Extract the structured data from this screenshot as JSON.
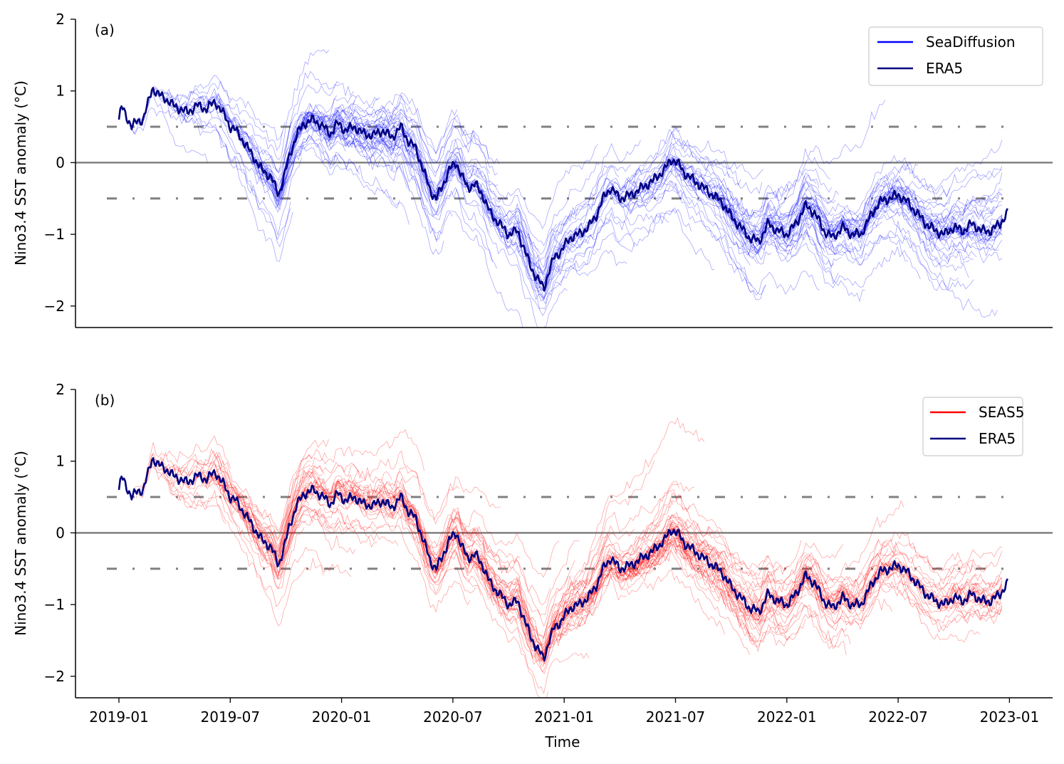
{
  "chart_data": [
    {
      "type": "line",
      "panel_label": "(a)",
      "ylabel": "Nino3.4 SST anomaly (°C)",
      "xlabel": "",
      "ylim": [
        -2.3,
        2.0
      ],
      "yticks": [
        2,
        1,
        0,
        -1,
        -2
      ],
      "ytick_labels": [
        "2",
        "1",
        "0",
        "−1",
        "−2"
      ],
      "reference_lines": {
        "zero": 0,
        "thresholds": [
          0.5,
          -0.5
        ]
      },
      "legend": {
        "position": "top-right",
        "entries": [
          "SeaDiffusion",
          "ERA5"
        ]
      },
      "series": [
        {
          "name": "SeaDiffusion",
          "kind": "ensemble",
          "color": "#0000ff",
          "description_range": "forecast spaghetti trajectories launched along ERA5, spread roughly ±0.9°C around observed"
        },
        {
          "name": "ERA5",
          "color": "#00007f"
        }
      ]
    },
    {
      "type": "line",
      "panel_label": "(b)",
      "ylabel": "Nino3.4 SST anomaly (°C)",
      "xlabel": "Time",
      "ylim": [
        -2.3,
        2.0
      ],
      "yticks": [
        2,
        1,
        0,
        -1,
        -2
      ],
      "ytick_labels": [
        "2",
        "1",
        "0",
        "−1",
        "−2"
      ],
      "reference_lines": {
        "zero": 0,
        "thresholds": [
          0.5,
          -0.5
        ]
      },
      "legend": {
        "position": "top-right",
        "entries": [
          "SEAS5",
          "ERA5"
        ]
      },
      "series": [
        {
          "name": "SEAS5",
          "kind": "ensemble",
          "color": "#ff0000"
        },
        {
          "name": "ERA5",
          "color": "#00007f"
        }
      ],
      "xticks": [
        "2019-01",
        "2019-07",
        "2020-01",
        "2020-07",
        "2021-01",
        "2021-07",
        "2022-01",
        "2022-07",
        "2023-01"
      ],
      "xtick_values": [
        0,
        6,
        12,
        18,
        24,
        30,
        36,
        42,
        48
      ]
    }
  ],
  "era5_anchor_points": {
    "x_months": [
      0,
      0.15,
      0.4,
      0.7,
      1.0,
      1.3,
      1.6,
      1.8,
      2.1,
      2.5,
      2.9,
      3.3,
      3.7,
      4.2,
      4.7,
      5.2,
      5.7,
      6.0,
      6.3,
      6.7,
      7.2,
      7.7,
      8.2,
      8.6,
      8.9,
      9.2,
      9.6,
      10.0,
      10.5,
      11.0,
      11.4,
      11.8,
      12.2,
      12.7,
      13.2,
      13.7,
      14.2,
      14.7,
      15.2,
      15.6,
      16.0,
      16.4,
      16.8,
      17.1,
      17.4,
      17.8,
      18.2,
      18.5,
      18.8,
      19.2,
      19.6,
      20.0,
      20.5,
      21.0,
      21.5,
      21.9,
      22.2,
      22.5,
      22.9,
      23.2,
      23.5,
      23.8,
      24.3,
      24.8,
      25.3,
      25.7,
      26.1,
      26.5,
      27.0,
      27.6,
      28.2,
      28.8,
      29.4,
      29.8,
      30.1,
      30.5,
      31.0,
      31.5,
      32.0,
      32.5,
      33.0,
      33.5,
      34.0,
      34.5,
      35.0,
      35.5,
      36.0,
      36.5,
      37.0,
      37.5,
      38.0,
      38.5,
      39.0,
      39.5,
      40.0,
      40.5,
      41.0,
      41.5,
      42.0,
      42.5,
      43.0,
      43.5,
      44.0,
      44.5,
      45.0,
      45.5,
      46.0,
      46.5,
      47.0,
      47.5,
      47.9
    ],
    "y_anomaly": [
      0.6,
      0.78,
      0.65,
      0.5,
      0.58,
      0.6,
      0.85,
      1.05,
      0.95,
      0.9,
      0.8,
      0.75,
      0.7,
      0.8,
      0.75,
      0.85,
      0.65,
      0.5,
      0.45,
      0.3,
      0.1,
      -0.1,
      -0.2,
      -0.45,
      -0.2,
      0.1,
      0.4,
      0.55,
      0.6,
      0.5,
      0.4,
      0.55,
      0.45,
      0.5,
      0.4,
      0.38,
      0.45,
      0.35,
      0.5,
      0.3,
      0.2,
      -0.1,
      -0.4,
      -0.5,
      -0.35,
      -0.1,
      0.0,
      -0.2,
      -0.35,
      -0.3,
      -0.45,
      -0.7,
      -0.85,
      -1.0,
      -0.95,
      -1.25,
      -1.45,
      -1.6,
      -1.75,
      -1.5,
      -1.3,
      -1.25,
      -1.05,
      -1.0,
      -0.9,
      -0.75,
      -0.5,
      -0.35,
      -0.5,
      -0.45,
      -0.35,
      -0.25,
      -0.1,
      0.05,
      0.0,
      -0.15,
      -0.25,
      -0.35,
      -0.45,
      -0.55,
      -0.75,
      -0.9,
      -1.05,
      -1.1,
      -0.85,
      -0.95,
      -1.0,
      -0.85,
      -0.6,
      -0.7,
      -0.95,
      -1.05,
      -0.9,
      -1.0,
      -1.0,
      -0.75,
      -0.55,
      -0.5,
      -0.45,
      -0.55,
      -0.7,
      -0.85,
      -0.95,
      -1.0,
      -0.9,
      -0.95,
      -0.85,
      -0.95,
      -0.95,
      -0.85,
      -0.7
    ]
  }
}
